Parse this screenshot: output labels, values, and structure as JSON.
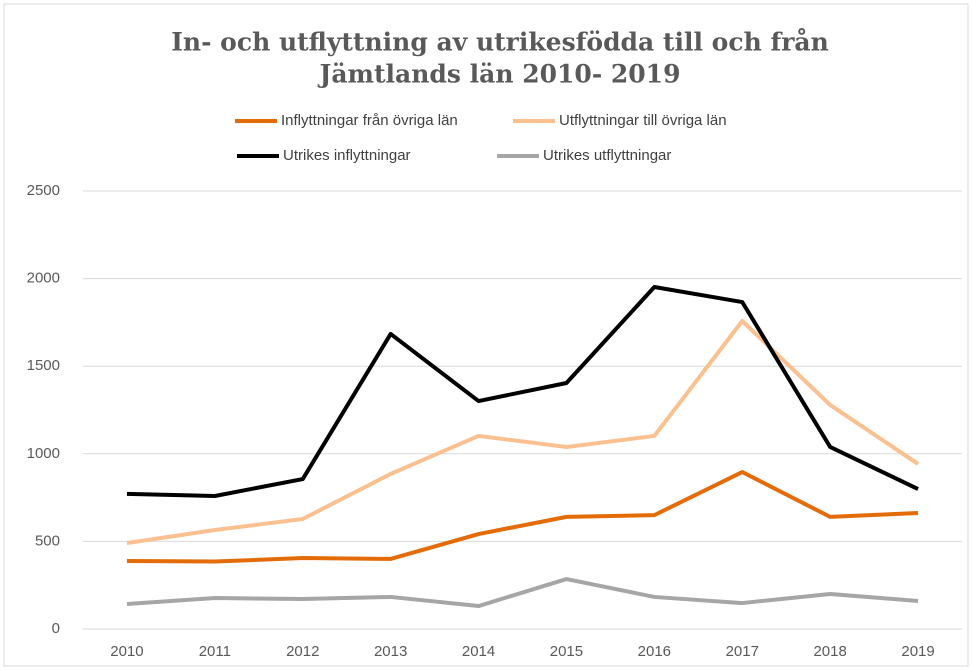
{
  "chart_data": {
    "type": "line",
    "title": [
      "In- och utflyttning av utrikesfödda till och från",
      "Jämtlands län 2010- 2019"
    ],
    "categories": [
      "2010",
      "2011",
      "2012",
      "2013",
      "2014",
      "2015",
      "2016",
      "2017",
      "2018",
      "2019"
    ],
    "series": [
      {
        "name": "Inflyttningar från övriga län",
        "color": "#e36c09",
        "values": [
          388,
          385,
          405,
          400,
          542,
          640,
          650,
          896,
          640,
          662
        ]
      },
      {
        "name": "Utflyttningar till övriga län",
        "color": "#fac090",
        "values": [
          491,
          565,
          628,
          885,
          1102,
          1039,
          1102,
          1758,
          1279,
          942
        ]
      },
      {
        "name": "Utrikes inflyttningar",
        "color": "#000000",
        "values": [
          771,
          759,
          856,
          1684,
          1301,
          1404,
          1952,
          1866,
          1039,
          799
        ]
      },
      {
        "name": "Utrikes utflyttningar",
        "color": "#a6a6a6",
        "values": [
          143,
          177,
          171,
          183,
          131,
          285,
          183,
          148,
          200,
          160
        ]
      }
    ],
    "ylim": [
      0,
      2500
    ],
    "yticks": [
      0,
      500,
      1000,
      1500,
      2000,
      2500
    ],
    "grid": true
  }
}
